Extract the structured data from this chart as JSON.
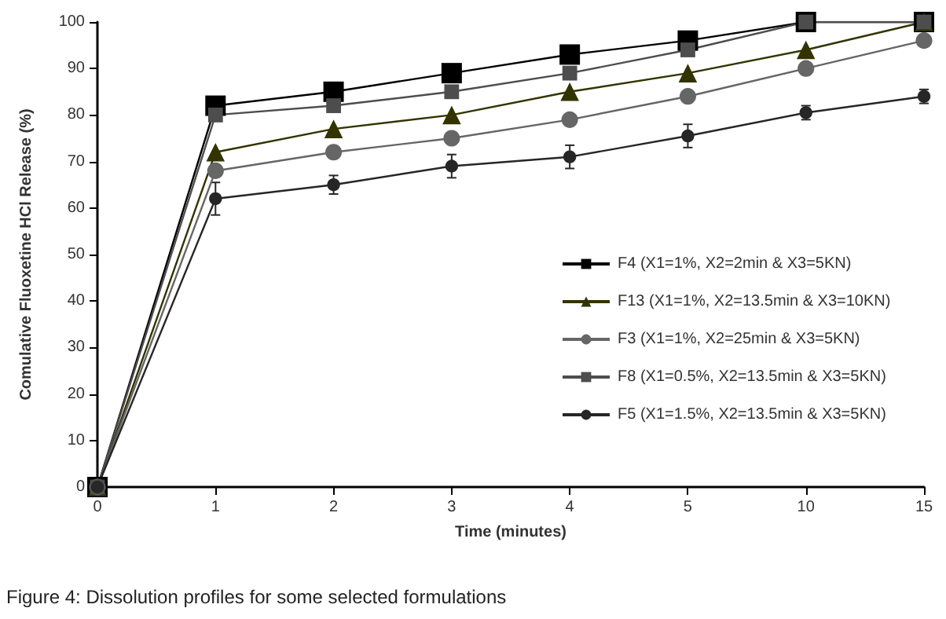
{
  "chart_data": {
    "type": "line",
    "xlabel": "Time (minutes)",
    "ylabel": "Comulative Fluoxetine HCl Release (%)",
    "categories": [
      "0",
      "1",
      "2",
      "3",
      "4",
      "5",
      "10",
      "15"
    ],
    "ylim": [
      0,
      100
    ],
    "yticks": [
      0,
      10,
      20,
      30,
      40,
      50,
      60,
      70,
      80,
      90,
      100
    ],
    "grid": false,
    "legend": "right",
    "series": [
      {
        "name": "F4 (X1=1%, X2=2min & X3=5KN)",
        "color": "#000000",
        "marker": "square",
        "values": [
          0,
          82,
          85,
          89,
          93,
          96,
          100,
          100
        ]
      },
      {
        "name": "F13 (X1=1%, X2=13.5min & X3=10KN)",
        "color": "#333300",
        "marker": "triangle",
        "values": [
          0,
          72,
          77,
          80,
          85,
          89,
          94,
          100
        ]
      },
      {
        "name": "F3 (X1=1%, X2=25min & X3=5KN)",
        "color": "#666666",
        "marker": "circle",
        "values": [
          0,
          68,
          72,
          75,
          79,
          84,
          90,
          96
        ]
      },
      {
        "name": "F8 (X1=0.5%, X2=13.5min & X3=5KN)",
        "color": "#4d4d4d",
        "marker": "square",
        "values": [
          0,
          80,
          82,
          85,
          89,
          94,
          100,
          100
        ]
      },
      {
        "name": "F5 (X1=1.5%, X2=13.5min & X3=5KN)",
        "color": "#262626",
        "marker": "circle",
        "values": [
          0,
          62,
          65,
          69,
          71,
          75.5,
          80.5,
          84
        ],
        "errors": [
          null,
          3.5,
          2,
          2.5,
          2.5,
          2.5,
          1.5,
          1.5
        ]
      }
    ],
    "annotations": [
      "Figure 4: Dissolution profiles for some selected formulations"
    ]
  }
}
